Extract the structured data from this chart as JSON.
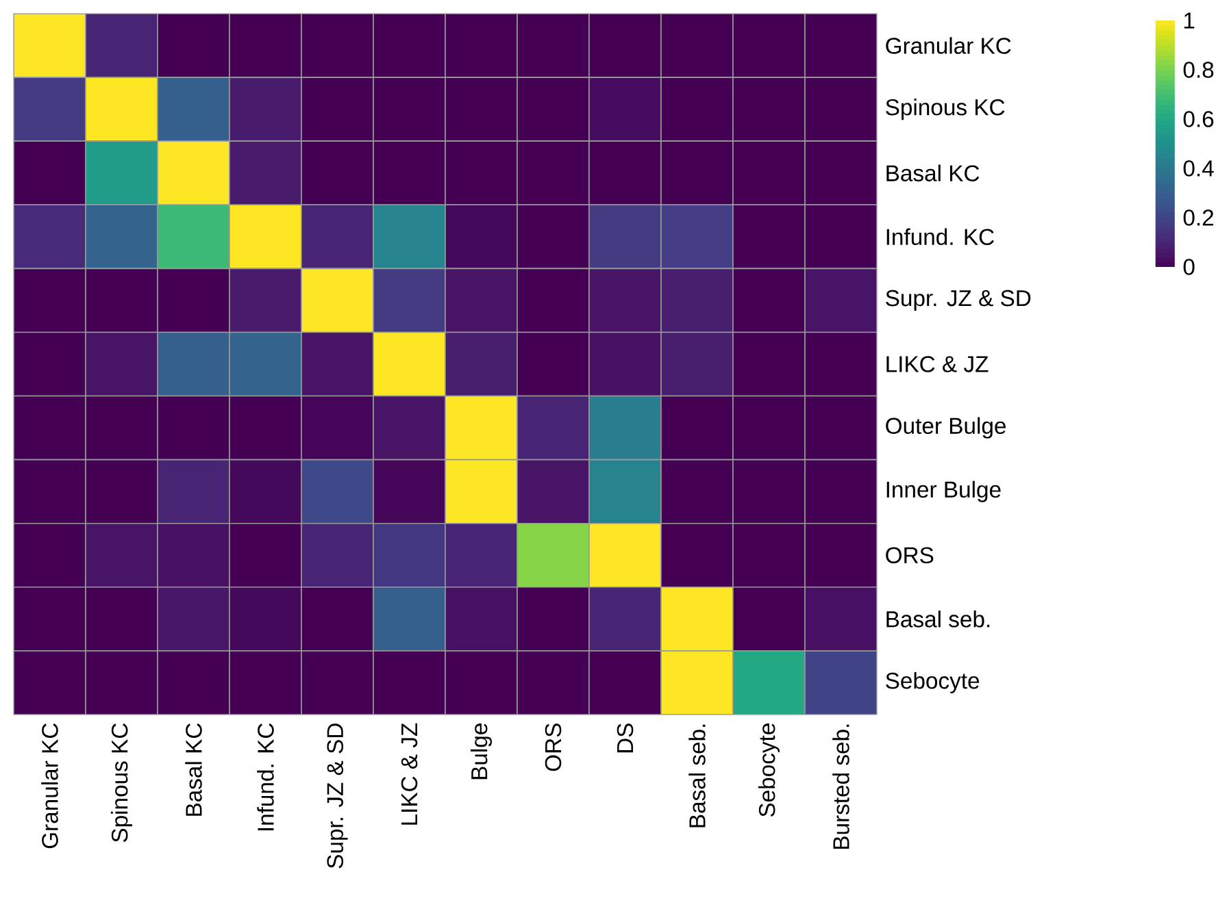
{
  "chart_data": {
    "type": "heatmap",
    "categories": [
      "Granular KC",
      "Spinous KC",
      "Basal KC",
      "Infund. KC",
      "Supr. JZ & SD",
      "LIKC & JZ",
      "Bulge",
      "ORS",
      "DS",
      "Basal seb.",
      "Sebocyte",
      "Bursted seb."
    ],
    "y_categories": [
      "Granular KC",
      "Spinous KC",
      "Basal KC",
      "Infund. KC",
      "Supr. JZ & SD",
      "LIKC & JZ",
      "Outer Bulge",
      "Inner Bulge",
      "ORS",
      "Basal seb.",
      "Sebocyte"
    ],
    "cells": [
      [
        1,
        0.1,
        0,
        0,
        0,
        0,
        0,
        0,
        0,
        0,
        0,
        0
      ],
      [
        0.17,
        1,
        0.3,
        0.07,
        0,
        0,
        0,
        0,
        0.03,
        0,
        0,
        0
      ],
      [
        0,
        0.55,
        1,
        0.07,
        0,
        0,
        0,
        0,
        0,
        0,
        0,
        0
      ],
      [
        0.12,
        0.32,
        0.68,
        1,
        0.1,
        0.45,
        0.02,
        0,
        0.17,
        0.18,
        0,
        0
      ],
      [
        0,
        0,
        0,
        0.07,
        1,
        0.17,
        0.05,
        0,
        0.05,
        0.08,
        0,
        0.05
      ],
      [
        0,
        0.05,
        0.3,
        0.32,
        0.05,
        1,
        0.08,
        0,
        0.04,
        0.08,
        0,
        0
      ],
      [
        0,
        0,
        0,
        0,
        0.01,
        0.05,
        1,
        0.1,
        0.42,
        0,
        0,
        0
      ],
      [
        0,
        0,
        0.1,
        0.02,
        0.22,
        0.01,
        1,
        0.05,
        0.45,
        0,
        0,
        0
      ],
      [
        0,
        0.05,
        0.04,
        0,
        0.1,
        0.16,
        0.1,
        0.82,
        1,
        0,
        0,
        0
      ],
      [
        0,
        0,
        0.06,
        0.02,
        0,
        0.3,
        0.04,
        0,
        0.1,
        1,
        0,
        0.04
      ],
      [
        0,
        0,
        0,
        0,
        0,
        0,
        0,
        0,
        0,
        1,
        0.6,
        0.2
      ]
    ],
    "clim": [
      0,
      1
    ],
    "cticks": [
      0,
      0.2,
      0.4,
      0.6,
      0.8,
      1
    ]
  }
}
